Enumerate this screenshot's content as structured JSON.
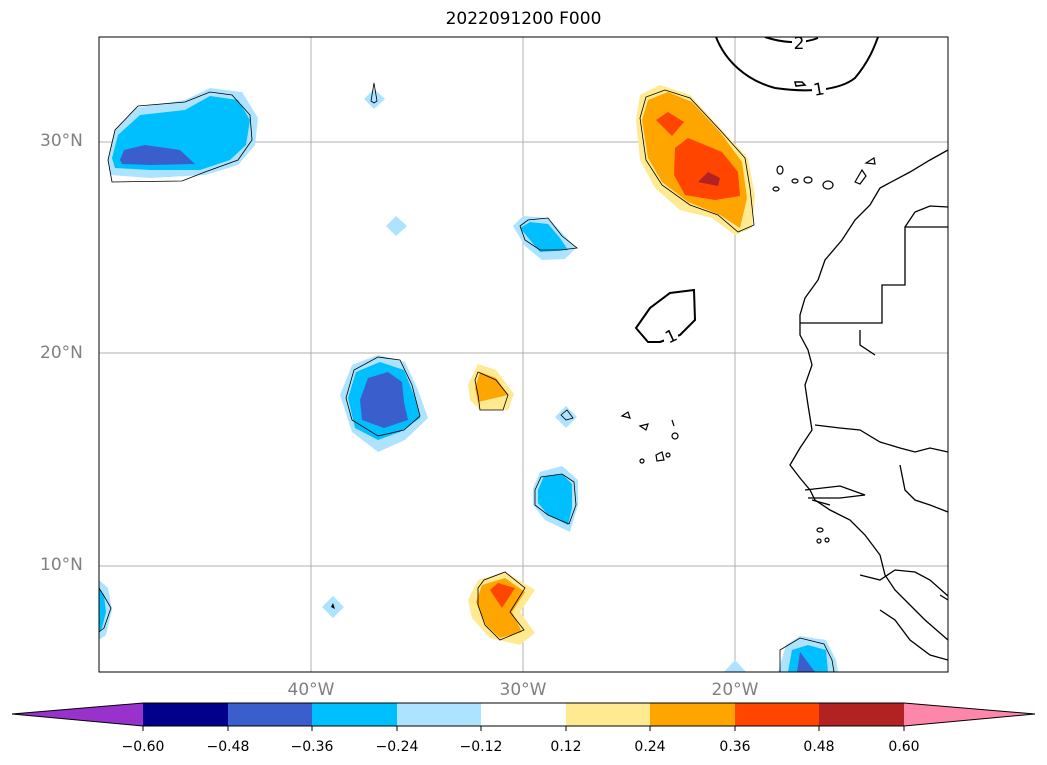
{
  "title": "2022091200 F000",
  "axes": {
    "lat_ticks": [
      "30°N",
      "20°N",
      "10°N"
    ],
    "lon_ticks": [
      "40°W",
      "30°W",
      "20°W"
    ]
  },
  "contour_labels": [
    "2",
    "1",
    "1"
  ],
  "colorbar": {
    "ticks": [
      "−0.60",
      "−0.48",
      "−0.36",
      "−0.24",
      "−0.12",
      "0.12",
      "0.24",
      "0.36",
      "0.48",
      "0.60"
    ],
    "colors": [
      "#9932cc",
      "#00008b",
      "#3a5fcd",
      "#00bfff",
      "#ade3ff",
      "#ffffff",
      "#ffea91",
      "#ffa500",
      "#ff4500",
      "#b22222",
      "#ff86ab"
    ]
  }
}
